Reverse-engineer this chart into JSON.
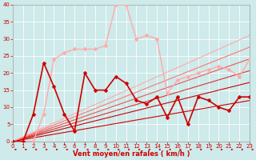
{
  "xlabel": "Vent moyen/en rafales ( km/h )",
  "xlim": [
    0,
    23
  ],
  "ylim": [
    0,
    40
  ],
  "xticks": [
    0,
    1,
    2,
    3,
    4,
    5,
    6,
    7,
    8,
    9,
    10,
    11,
    12,
    13,
    14,
    15,
    16,
    17,
    18,
    19,
    20,
    21,
    22,
    23
  ],
  "yticks": [
    0,
    5,
    10,
    15,
    20,
    25,
    30,
    35,
    40
  ],
  "bg_color": "#ceeaea",
  "grid_color": "#b0d0d0",
  "straight_lines": [
    {
      "slope": 0.52,
      "color": "#cc0000",
      "lw": 0.8
    },
    {
      "slope": 0.75,
      "color": "#cc0000",
      "lw": 0.8
    },
    {
      "slope": 0.9,
      "color": "#dd3333",
      "lw": 0.8
    },
    {
      "slope": 1.05,
      "color": "#ee5555",
      "lw": 0.8
    },
    {
      "slope": 1.2,
      "color": "#ff7777",
      "lw": 0.8
    },
    {
      "slope": 1.35,
      "color": "#ffaaaa",
      "lw": 0.8
    }
  ],
  "jagged_lines": [
    {
      "x": [
        0,
        1,
        2,
        3,
        4,
        5,
        6,
        7,
        8,
        9,
        10,
        11,
        12,
        13,
        14,
        15,
        16,
        17,
        18,
        19,
        20,
        21,
        22,
        23
      ],
      "y": [
        0,
        0,
        0,
        8,
        24,
        26,
        27,
        27,
        27,
        28,
        40,
        40,
        30,
        31,
        30,
        14,
        18,
        19,
        20,
        21,
        22,
        21,
        19,
        24
      ],
      "color": "#ffaaaa",
      "lw": 1.0,
      "markersize": 2.5
    },
    {
      "x": [
        0,
        1,
        2,
        3,
        4,
        5,
        6,
        7,
        8,
        9,
        10,
        11,
        12,
        13,
        14,
        15,
        16,
        17,
        18,
        19,
        20,
        21,
        22,
        23
      ],
      "y": [
        0,
        0,
        8,
        23,
        16,
        8,
        3,
        20,
        15,
        15,
        19,
        17,
        12,
        11,
        13,
        7,
        13,
        5,
        13,
        12,
        10,
        9,
        13,
        13
      ],
      "color": "#cc0000",
      "lw": 1.2,
      "markersize": 2.5
    }
  ],
  "tick_color": "#cc0000",
  "xlabel_color": "#cc0000",
  "xlabel_fontsize": 6,
  "tick_fontsize": 5
}
